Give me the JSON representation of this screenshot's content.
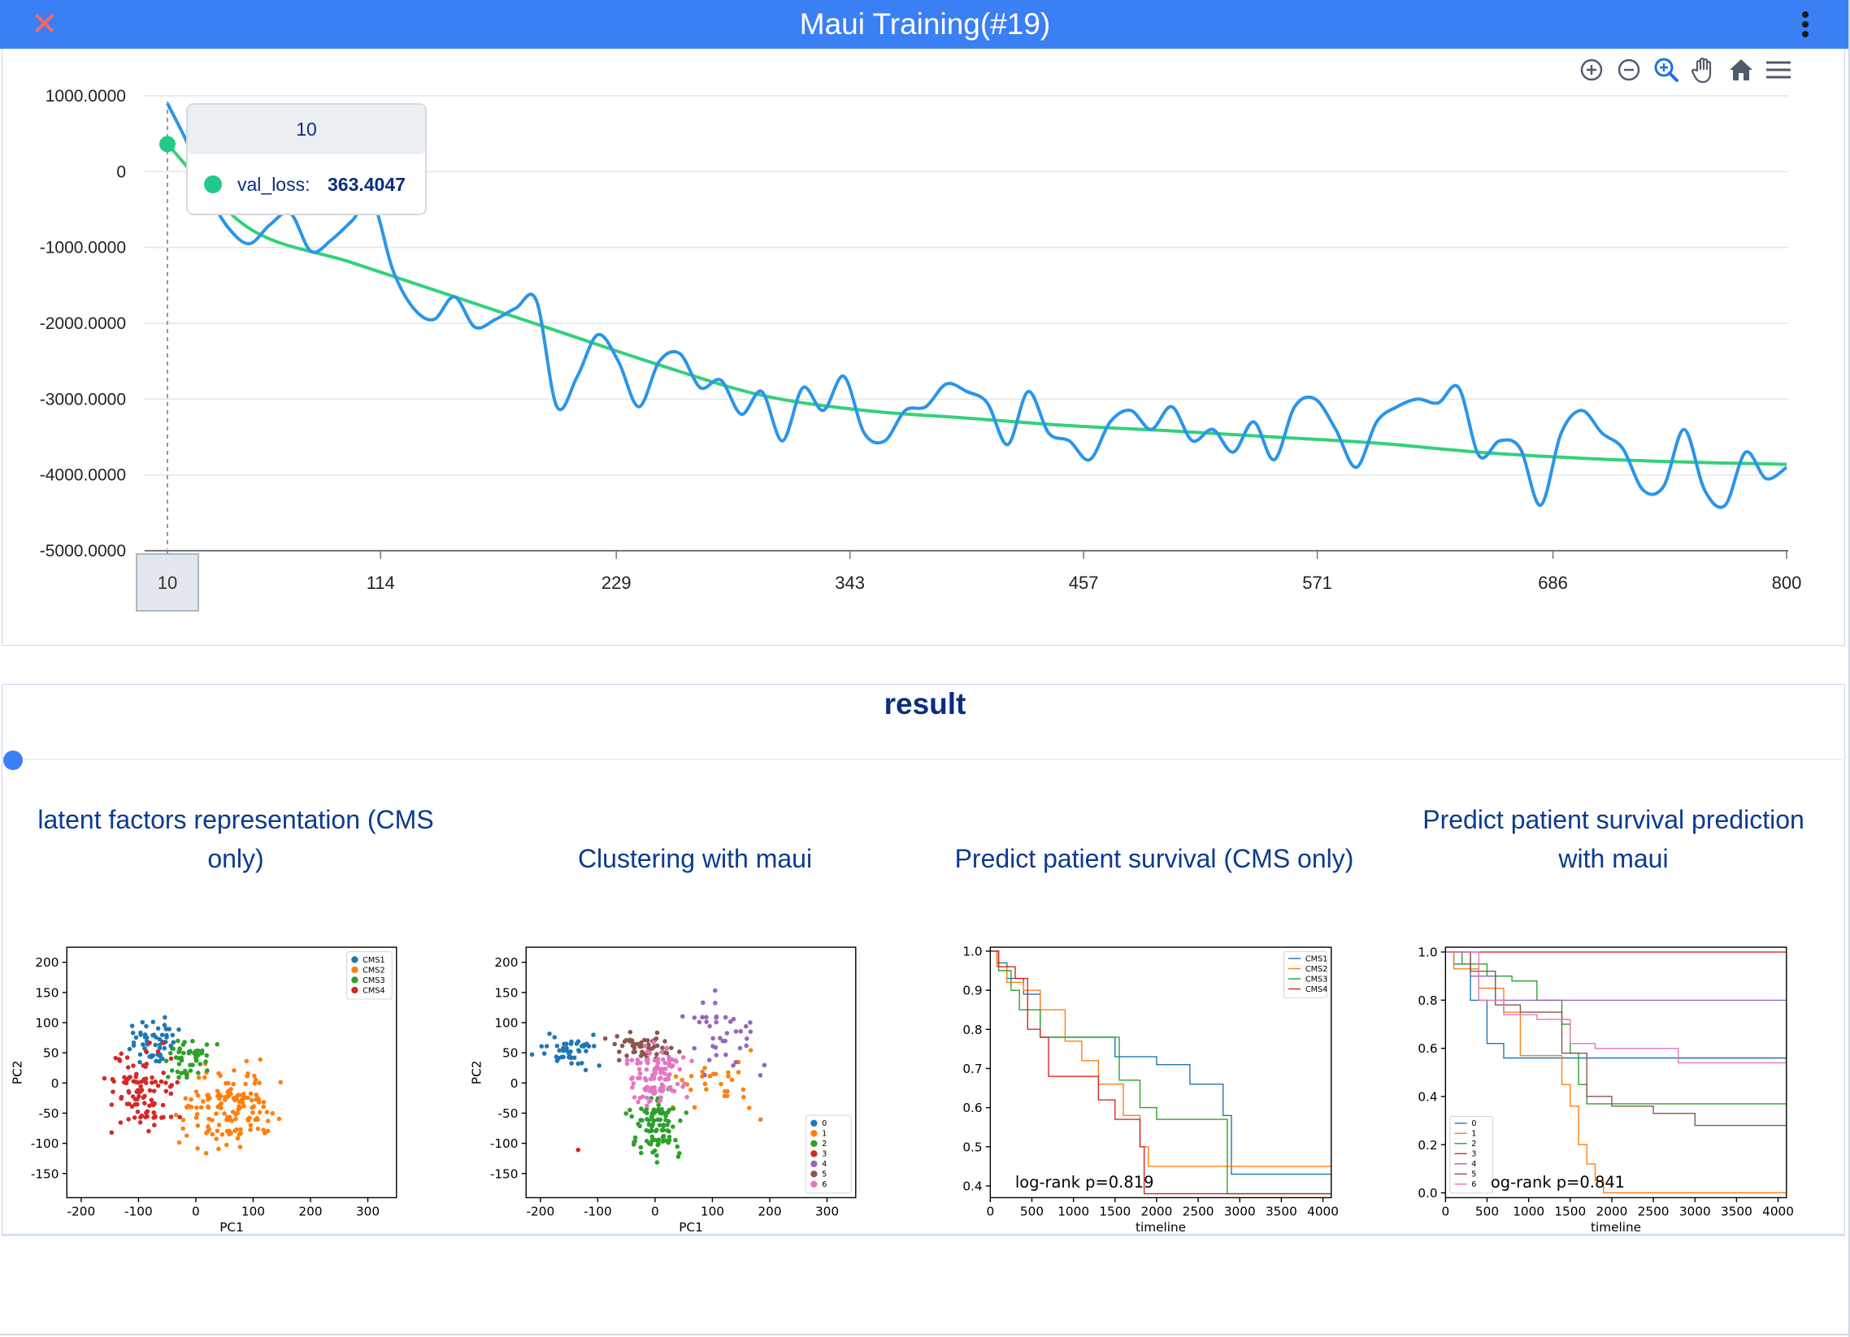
{
  "window": {
    "title": "Maui Training(#19)"
  },
  "toolbar": {
    "icons": [
      "zoom-in-icon",
      "zoom-out-icon",
      "zoom-reset-icon",
      "pan-hand-icon",
      "home-icon",
      "menu-icon"
    ]
  },
  "tooltip": {
    "x_value": "10",
    "series": "val_loss:",
    "value": "363.4047",
    "axis_label": "10"
  },
  "result": {
    "title": "result"
  },
  "figures": [
    {
      "caption": "latent factors representation (CMS only)"
    },
    {
      "caption": "Clustering with maui"
    },
    {
      "caption": "Predict patient survival (CMS only)",
      "annotation": "log-rank p=0.819"
    },
    {
      "caption": "Predict patient survival prediction with maui",
      "annotation": "og-rank p=0.841"
    }
  ],
  "colors": {
    "accent": "#3b7ff5",
    "loss_line": "#2b95e8",
    "smooth_line": "#33d17a",
    "heading": "#0b2d80"
  },
  "chart_data": [
    {
      "type": "line",
      "title": "",
      "xlabel": "",
      "ylabel": "",
      "x_ticks": [
        "10",
        "114",
        "229",
        "343",
        "457",
        "571",
        "686",
        "800"
      ],
      "y_ticks": [
        "1000.0000",
        "0",
        "-1000.0000",
        "-2000.0000",
        "-3000.0000",
        "-4000.0000",
        "-5000.0000"
      ],
      "xlim": [
        10,
        800
      ],
      "ylim": [
        -5000,
        1000
      ],
      "grid": true,
      "series": [
        {
          "name": "val_loss",
          "x": [
            10,
            20,
            30,
            40,
            50,
            60,
            70,
            80,
            90,
            100,
            110,
            120,
            130,
            140,
            150,
            160,
            170,
            180,
            190,
            200,
            210,
            220,
            230,
            240,
            250,
            260,
            270,
            280,
            290,
            300,
            310,
            320,
            330,
            340,
            350,
            360,
            370,
            380,
            390,
            400,
            410,
            420,
            430,
            440,
            450,
            460,
            470,
            480,
            490,
            500,
            510,
            520,
            530,
            540,
            550,
            560,
            570,
            580,
            590,
            600,
            610,
            620,
            630,
            640,
            650,
            660,
            670,
            680,
            690,
            700,
            710,
            720,
            730,
            740,
            750,
            760,
            770,
            780,
            790,
            800
          ],
          "y": [
            900,
            363,
            -300,
            -750,
            -950,
            -700,
            -550,
            -1050,
            -900,
            -650,
            -400,
            -1300,
            -1800,
            -1950,
            -1650,
            -2050,
            -1950,
            -1800,
            -1700,
            -3100,
            -2700,
            -2150,
            -2500,
            -3100,
            -2500,
            -2400,
            -2850,
            -2750,
            -3200,
            -2900,
            -3550,
            -2850,
            -3150,
            -2700,
            -3450,
            -3550,
            -3150,
            -3100,
            -2800,
            -2900,
            -3050,
            -3600,
            -2900,
            -3450,
            -3550,
            -3800,
            -3300,
            -3150,
            -3400,
            -3100,
            -3550,
            -3400,
            -3700,
            -3300,
            -3800,
            -3100,
            -3000,
            -3400,
            -3900,
            -3300,
            -3100,
            -3000,
            -3050,
            -2850,
            -3750,
            -3550,
            -3650,
            -4400,
            -3450,
            -3150,
            -3450,
            -3650,
            -4200,
            -4150,
            -3400,
            -4200,
            -4400,
            -3700,
            -4050,
            -3900
          ]
        },
        {
          "name": "smooth",
          "x": [
            10,
            50,
            100,
            150,
            200,
            250,
            300,
            350,
            400,
            450,
            500,
            550,
            600,
            650,
            700,
            750,
            800
          ],
          "y": [
            363,
            -750,
            -1200,
            -1650,
            -2100,
            -2550,
            -2950,
            -3150,
            -3250,
            -3350,
            -3420,
            -3500,
            -3580,
            -3700,
            -3780,
            -3830,
            -3860
          ]
        }
      ],
      "highlight": {
        "x": 10,
        "y": 363.4047
      }
    },
    {
      "type": "scatter",
      "xlabel": "PC1",
      "ylabel": "PC2",
      "x_ticks": [
        "-200",
        "-100",
        "0",
        "100",
        "200",
        "300"
      ],
      "y_ticks": [
        "-150",
        "-100",
        "-50",
        "0",
        "50",
        "100",
        "150",
        "200"
      ],
      "xlim": [
        -225,
        350
      ],
      "ylim": [
        -190,
        225
      ],
      "legend": "top-right",
      "series": [
        {
          "name": "CMS1",
          "color": "#1f77b4"
        },
        {
          "name": "CMS2",
          "color": "#ff7f0e"
        },
        {
          "name": "CMS3",
          "color": "#2ca02c"
        },
        {
          "name": "CMS4",
          "color": "#d62728"
        }
      ]
    },
    {
      "type": "scatter",
      "xlabel": "PC1",
      "ylabel": "PC2",
      "x_ticks": [
        "-200",
        "-100",
        "0",
        "100",
        "200",
        "300"
      ],
      "y_ticks": [
        "-150",
        "-100",
        "-50",
        "0",
        "50",
        "100",
        "150",
        "200"
      ],
      "xlim": [
        -225,
        350
      ],
      "ylim": [
        -190,
        225
      ],
      "legend": "bottom-right",
      "series": [
        {
          "name": "0",
          "color": "#1f77b4"
        },
        {
          "name": "1",
          "color": "#ff7f0e"
        },
        {
          "name": "2",
          "color": "#2ca02c"
        },
        {
          "name": "3",
          "color": "#d62728"
        },
        {
          "name": "4",
          "color": "#9467bd"
        },
        {
          "name": "5",
          "color": "#8c564b"
        },
        {
          "name": "6",
          "color": "#e377c2"
        }
      ]
    },
    {
      "type": "line",
      "xlabel": "timeline",
      "ylabel": "",
      "x_ticks": [
        "0",
        "500",
        "1000",
        "1500",
        "2000",
        "2500",
        "3000",
        "3500",
        "4000"
      ],
      "y_ticks": [
        "0.4",
        "0.5",
        "0.6",
        "0.7",
        "0.8",
        "0.9",
        "1.0"
      ],
      "xlim": [
        0,
        4100
      ],
      "ylim": [
        0.37,
        1.01
      ],
      "legend": "top-right",
      "series": [
        {
          "name": "CMS1",
          "color": "#1f77b4",
          "x": [
            0,
            80,
            200,
            400,
            600,
            1000,
            1400,
            1500,
            2000,
            2400,
            2800,
            2900,
            4100
          ],
          "y": [
            1.0,
            0.97,
            0.93,
            0.89,
            0.78,
            0.78,
            0.78,
            0.73,
            0.71,
            0.66,
            0.58,
            0.43,
            0.43
          ]
        },
        {
          "name": "CMS2",
          "color": "#ff7f0e",
          "x": [
            0,
            80,
            200,
            400,
            600,
            900,
            1100,
            1300,
            1600,
            1800,
            1900,
            4100
          ],
          "y": [
            1.0,
            0.96,
            0.92,
            0.9,
            0.85,
            0.77,
            0.72,
            0.66,
            0.58,
            0.5,
            0.45,
            0.45
          ]
        },
        {
          "name": "CMS3",
          "color": "#2ca02c",
          "x": [
            0,
            100,
            250,
            350,
            600,
            1000,
            1450,
            1550,
            1800,
            2000,
            2800,
            2850,
            4100
          ],
          "y": [
            1.0,
            0.95,
            0.9,
            0.85,
            0.78,
            0.78,
            0.78,
            0.67,
            0.6,
            0.57,
            0.57,
            0.38,
            0.38
          ]
        },
        {
          "name": "CMS4",
          "color": "#d62728",
          "x": [
            0,
            100,
            300,
            450,
            600,
            700,
            1000,
            1300,
            1500,
            1800,
            1850,
            4100
          ],
          "y": [
            1.0,
            0.96,
            0.93,
            0.8,
            0.78,
            0.68,
            0.68,
            0.62,
            0.57,
            0.5,
            0.38,
            0.38
          ]
        }
      ]
    },
    {
      "type": "line",
      "xlabel": "timeline",
      "ylabel": "",
      "x_ticks": [
        "0",
        "500",
        "1000",
        "1500",
        "2000",
        "2500",
        "3000",
        "3500",
        "4000"
      ],
      "y_ticks": [
        "0.0",
        "0.2",
        "0.4",
        "0.6",
        "0.8",
        "1.0"
      ],
      "xlim": [
        0,
        4100
      ],
      "ylim": [
        -0.02,
        1.02
      ],
      "legend": "bottom-left",
      "series": [
        {
          "name": "0",
          "color": "#1f77b4",
          "x": [
            0,
            100,
            300,
            500,
            700,
            1500,
            2800,
            3000,
            4100
          ],
          "y": [
            1.0,
            0.95,
            0.8,
            0.62,
            0.56,
            0.56,
            0.56,
            0.56,
            0.56
          ]
        },
        {
          "name": "1",
          "color": "#ff7f0e",
          "x": [
            0,
            100,
            400,
            700,
            900,
            1200,
            1400,
            1500,
            1600,
            1700,
            1800,
            1900,
            4100
          ],
          "y": [
            1.0,
            0.93,
            0.85,
            0.75,
            0.57,
            0.57,
            0.45,
            0.36,
            0.2,
            0.12,
            0.05,
            0.0,
            0.0
          ]
        },
        {
          "name": "2",
          "color": "#2ca02c",
          "x": [
            0,
            200,
            500,
            800,
            1100,
            1400,
            1500,
            1600,
            1700,
            4100
          ],
          "y": [
            1.0,
            0.95,
            0.9,
            0.88,
            0.8,
            0.7,
            0.58,
            0.45,
            0.37,
            0.37
          ]
        },
        {
          "name": "3",
          "color": "#d62728",
          "x": [
            0,
            4100
          ],
          "y": [
            1.0,
            1.0
          ]
        },
        {
          "name": "4",
          "color": "#9467bd",
          "x": [
            0,
            300,
            600,
            4100
          ],
          "y": [
            1.0,
            0.9,
            0.8,
            0.8
          ]
        },
        {
          "name": "5",
          "color": "#8c564b",
          "x": [
            0,
            300,
            600,
            900,
            1200,
            1400,
            1700,
            2000,
            2500,
            3000,
            4100
          ],
          "y": [
            1.0,
            0.92,
            0.78,
            0.75,
            0.75,
            0.58,
            0.4,
            0.36,
            0.33,
            0.28,
            0.28
          ]
        },
        {
          "name": "6",
          "color": "#e377c2",
          "x": [
            0,
            400,
            700,
            1100,
            1500,
            1800,
            2700,
            2800,
            4100
          ],
          "y": [
            1.0,
            0.8,
            0.74,
            0.72,
            0.62,
            0.6,
            0.6,
            0.54,
            0.54
          ]
        }
      ]
    }
  ]
}
